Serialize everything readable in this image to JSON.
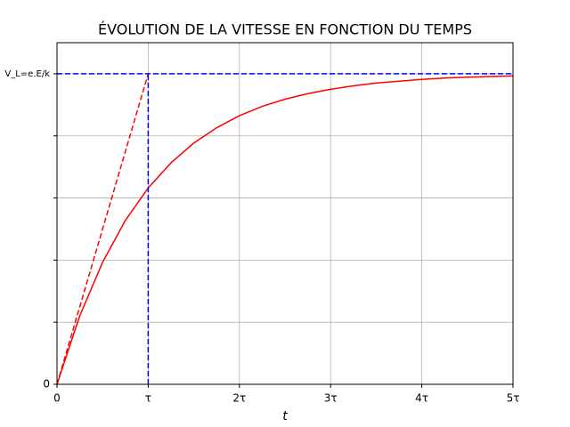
{
  "chart_data": {
    "type": "line",
    "title": "ÉVOLUTION DE LA VITESSE EN FONCTION DU TEMPS",
    "xlabel": "t",
    "xlim": [
      0,
      5
    ],
    "xticks": [
      0,
      {
        "value": 1,
        "label": "τ"
      },
      {
        "value": 2,
        "label": "2τ"
      },
      {
        "value": 3,
        "label": "3τ"
      },
      {
        "value": 4,
        "label": "4τ"
      },
      {
        "value": 5,
        "label": "5τ"
      }
    ],
    "ylim": [
      0,
      1.1
    ],
    "yticks": [
      0,
      {
        "value": 0.2,
        "label": null
      },
      {
        "value": 0.4,
        "label": null
      },
      {
        "value": 0.6,
        "label": null
      },
      {
        "value": 0.8,
        "label": null
      },
      {
        "value": 1,
        "label": "V_L=e.E/k"
      }
    ],
    "grid": true,
    "series": [
      {
        "color": "#ff0000",
        "style": "solid",
        "x": [
          0,
          0.25,
          0.5,
          0.75,
          1,
          1.25,
          1.5,
          1.75,
          2,
          2.25,
          2.5,
          2.75,
          3,
          3.25,
          3.5,
          3.75,
          4,
          4.25,
          4.5,
          4.75,
          5
        ],
        "values": [
          0,
          0.221,
          0.393,
          0.528,
          0.632,
          0.713,
          0.777,
          0.826,
          0.865,
          0.895,
          0.918,
          0.936,
          0.95,
          0.961,
          0.97,
          0.976,
          0.982,
          0.986,
          0.989,
          0.991,
          0.993
        ]
      },
      {
        "color": "#ff0000",
        "style": "dashed",
        "x": [
          0,
          1
        ],
        "values": [
          0,
          1
        ]
      },
      {
        "color": "#0000ff",
        "style": "dashed",
        "x": [
          0,
          5
        ],
        "values": [
          1,
          1
        ]
      },
      {
        "color": "#0000ff",
        "style": "dashed",
        "x": [
          1,
          1
        ],
        "values": [
          0,
          1
        ]
      }
    ]
  }
}
